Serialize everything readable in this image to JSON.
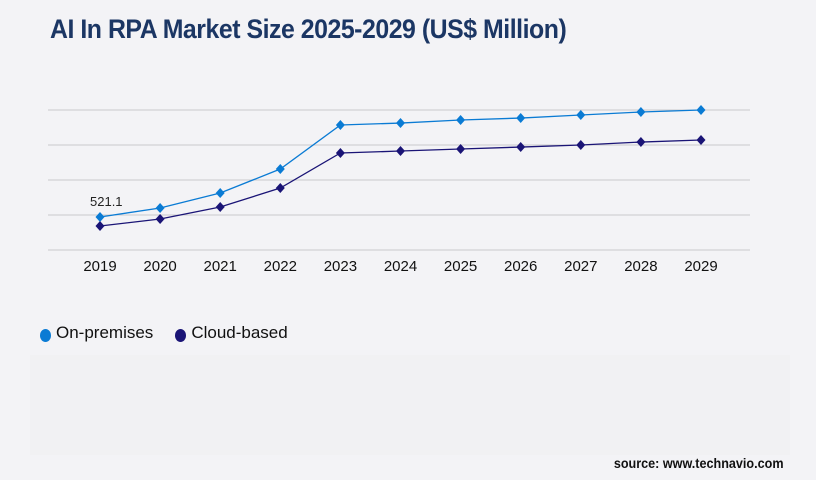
{
  "chart_data": {
    "type": "line",
    "title": "AI In RPA Market Size 2025-2029 (US$ Million)",
    "xlabel": "",
    "ylabel": "",
    "categories": [
      "2019",
      "2020",
      "2021",
      "2022",
      "2023",
      "2024",
      "2025",
      "2026",
      "2027",
      "2028",
      "2029"
    ],
    "series": [
      {
        "name": "On-premises",
        "color": "#0a7bd4",
        "values": [
          521.1,
          663,
          900,
          1279,
          1974,
          2005,
          2053,
          2084,
          2132,
          2179,
          2211
        ]
      },
      {
        "name": "Cloud-based",
        "color": "#1a1476",
        "values": [
          379,
          490,
          679,
          979,
          1532,
          1563,
          1595,
          1626,
          1658,
          1705,
          1737
        ]
      }
    ],
    "data_labels": [
      {
        "series": "On-premises",
        "category": "2019",
        "text": "521.1"
      }
    ],
    "ylim": [
      0,
      2211
    ],
    "grid": true,
    "y_tick_labels_shown": false,
    "legend_placement": "bottom-left",
    "marker": "diamond"
  },
  "source": "source: www.technavio.com"
}
